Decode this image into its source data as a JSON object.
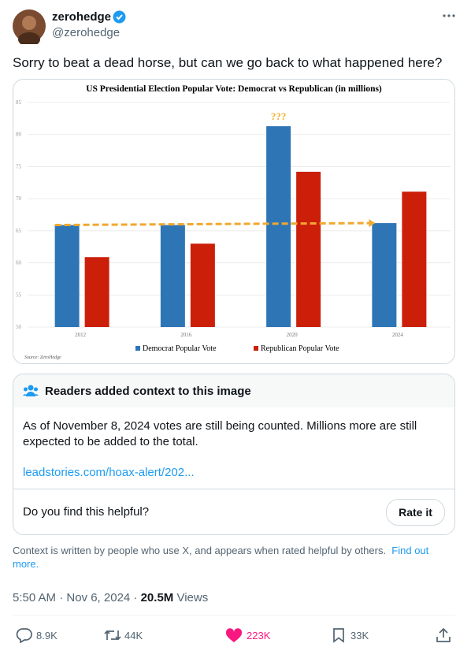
{
  "author": {
    "name": "zerohedge",
    "handle": "@zerohedge"
  },
  "tweet": {
    "text": "Sorry to beat a dead horse, but can we go back to what happened here?"
  },
  "chart_data": {
    "type": "bar",
    "title": "US Presidential Election Popular Vote: Democrat vs Republican (in millions)",
    "categories": [
      "2012",
      "2016",
      "2020",
      "2024"
    ],
    "series": [
      {
        "name": "Democrat Popular Vote",
        "color": "#2e75b6",
        "values": [
          65.9,
          65.9,
          81.3,
          66.2
        ]
      },
      {
        "name": "Republican Popular Vote",
        "color": "#cc1f0a",
        "values": [
          60.9,
          63.0,
          74.2,
          71.1
        ]
      }
    ],
    "ylim": [
      50,
      85
    ],
    "yticks": [
      50,
      55,
      60,
      65,
      70,
      75,
      80,
      85
    ],
    "grid": true,
    "legend": "bottom",
    "annotation": "???",
    "source": "Source: ZeroHedge"
  },
  "note": {
    "title": "Readers added context to this image",
    "body": "As of November 8, 2024 votes are still being counted.  Millions more are still expected to be added to the total.",
    "link": "leadstories.com/hoax-alert/202...",
    "question": "Do you find this helpful?",
    "button": "Rate it"
  },
  "footer": {
    "text": "Context is written by people who use X, and appears when rated helpful by others.",
    "link": "Find out more."
  },
  "meta": {
    "time": "5:50 AM · Nov 6, 2024 ·",
    "views": "20.5M",
    "views_label": "Views"
  },
  "actions": {
    "replies": "8.9K",
    "reposts": "44K",
    "likes": "223K",
    "bookmarks": "33K"
  }
}
